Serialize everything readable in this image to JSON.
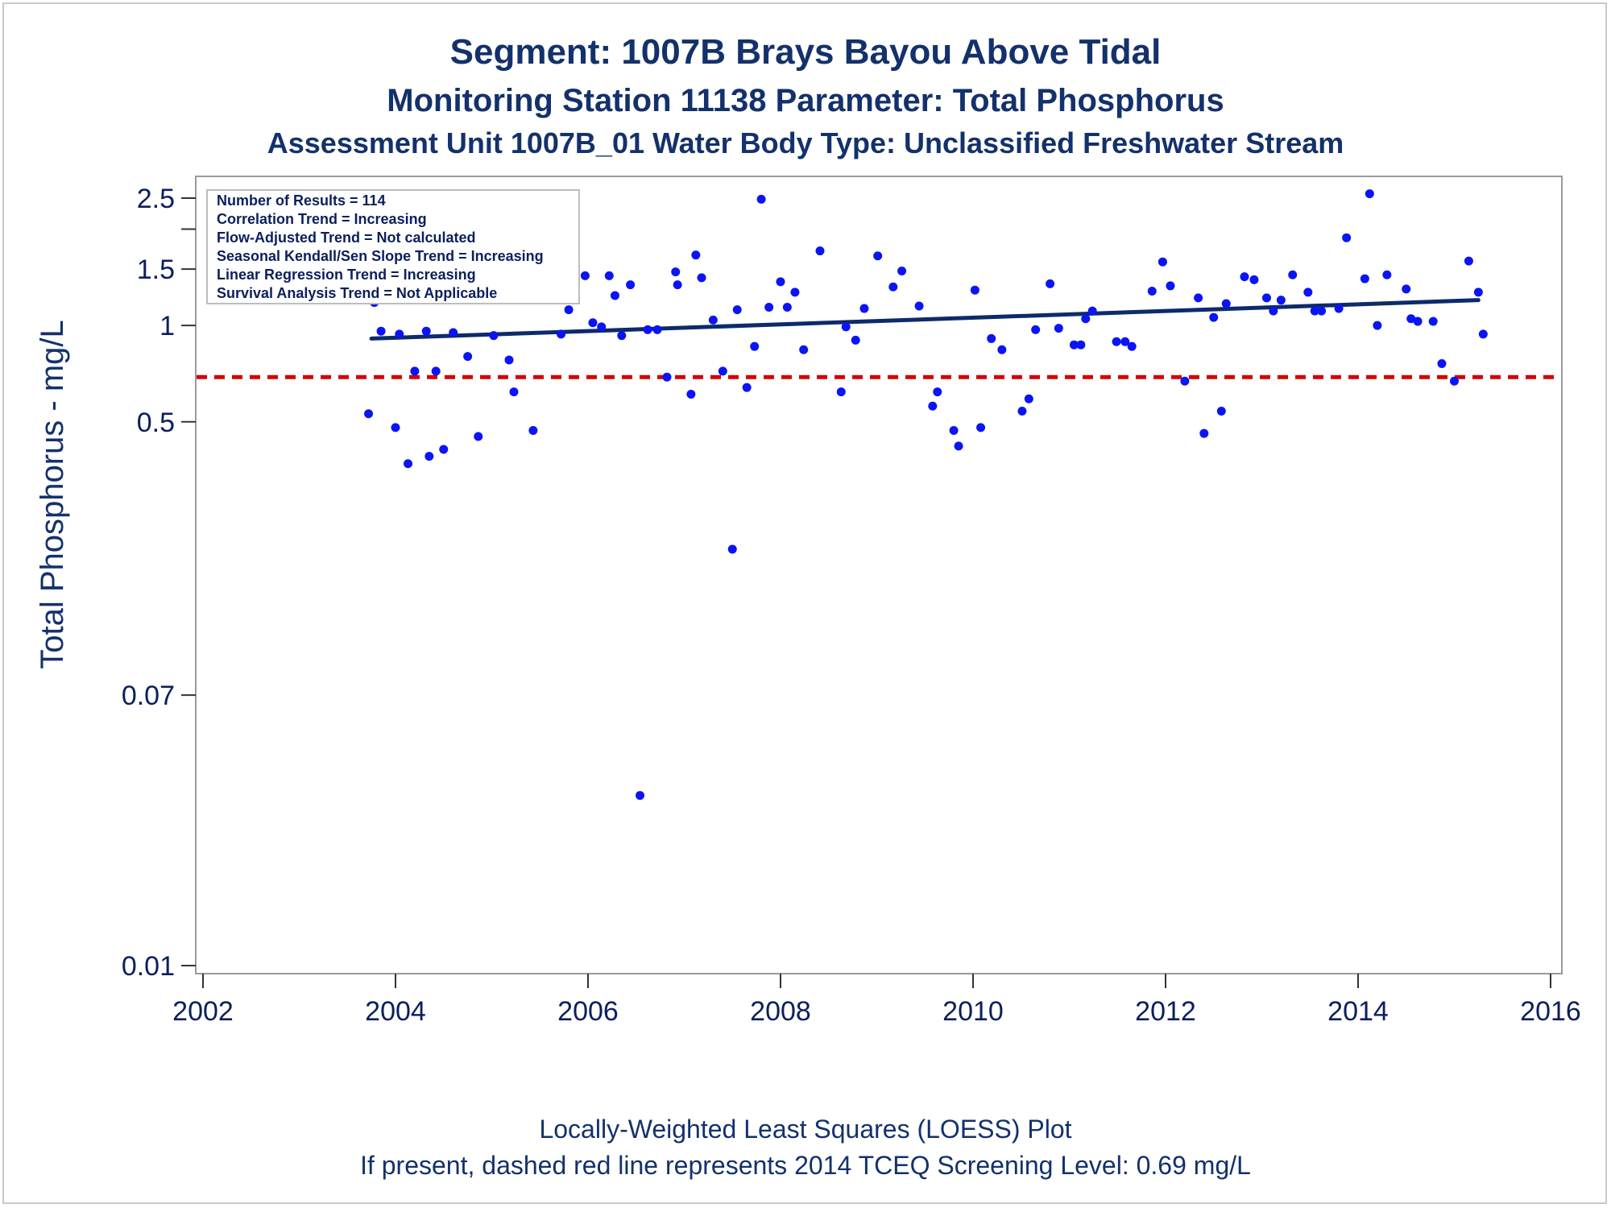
{
  "chart_data": {
    "type": "scatter",
    "title": "Segment: 1007B  Brays Bayou Above Tidal",
    "subtitle": "Monitoring Station 11138 Parameter: Total Phosphorus",
    "subtitle2": "Assessment Unit 1007B_01   Water Body Type: Unclassified Freshwater Stream",
    "xlabel": "",
    "ylabel": "Total Phosphorus - mg/L",
    "y_scale": "log",
    "xlim": [
      2002,
      2016
    ],
    "ylim": [
      0.009,
      2.9
    ],
    "x_ticks": [
      "2002",
      "2004",
      "2006",
      "2008",
      "2010",
      "2012",
      "2014",
      "2016"
    ],
    "y_ticks": [
      "0.01",
      "0.07",
      "0.5",
      "1",
      "1.5",
      "2.5"
    ],
    "y_minor_ticks": [
      2.0
    ],
    "inset_lines": [
      "Number of Results = 114",
      "Correlation Trend = Increasing",
      "Flow-Adjusted Trend = Not calculated",
      "Seasonal Kendall/Sen Slope Trend = Increasing",
      "Linear Regression Trend = Increasing",
      "Survival Analysis Trend = Not Applicable"
    ],
    "footnotes": [
      "Locally-Weighted Least Squares (LOESS) Plot",
      "If present, dashed red line represents 2014 TCEQ Screening Level: 0.69 mg/L"
    ],
    "screening_level": 0.69,
    "trend_line": [
      [
        2003.75,
        0.91
      ],
      [
        2015.25,
        1.2
      ]
    ],
    "colors": {
      "points": "#0a14f5",
      "trend": "#0d2a6b",
      "screening": "#d40000",
      "text": "#13316b"
    },
    "points": [
      [
        2003.72,
        0.53
      ],
      [
        2003.78,
        1.18
      ],
      [
        2003.85,
        0.96
      ],
      [
        2004.0,
        0.48
      ],
      [
        2004.04,
        0.94
      ],
      [
        2004.13,
        0.37
      ],
      [
        2004.2,
        0.72
      ],
      [
        2004.32,
        0.96
      ],
      [
        2004.35,
        0.39
      ],
      [
        2004.42,
        0.72
      ],
      [
        2004.5,
        0.41
      ],
      [
        2004.6,
        0.95
      ],
      [
        2004.75,
        0.8
      ],
      [
        2004.82,
        1.26
      ],
      [
        2004.86,
        0.45
      ],
      [
        2005.02,
        0.93
      ],
      [
        2005.12,
        1.65
      ],
      [
        2005.18,
        0.78
      ],
      [
        2005.23,
        0.62
      ],
      [
        2005.34,
        1.68
      ],
      [
        2005.43,
        0.47
      ],
      [
        2005.72,
        0.94
      ],
      [
        2005.8,
        1.12
      ],
      [
        2005.86,
        2.42
      ],
      [
        2005.97,
        1.43
      ],
      [
        2006.05,
        1.02
      ],
      [
        2006.14,
        0.99
      ],
      [
        2006.22,
        1.43
      ],
      [
        2006.28,
        1.24
      ],
      [
        2006.35,
        0.93
      ],
      [
        2006.44,
        1.34
      ],
      [
        2006.54,
        0.034
      ],
      [
        2006.62,
        0.97
      ],
      [
        2006.72,
        0.97
      ],
      [
        2006.82,
        0.69
      ],
      [
        2006.91,
        1.47
      ],
      [
        2006.93,
        1.34
      ],
      [
        2007.07,
        0.61
      ],
      [
        2007.12,
        1.66
      ],
      [
        2007.18,
        1.41
      ],
      [
        2007.3,
        1.04
      ],
      [
        2007.4,
        0.72
      ],
      [
        2007.5,
        0.2
      ],
      [
        2007.55,
        1.12
      ],
      [
        2007.65,
        0.64
      ],
      [
        2007.73,
        0.86
      ],
      [
        2007.8,
        2.48
      ],
      [
        2007.88,
        1.14
      ],
      [
        2008.0,
        1.37
      ],
      [
        2008.07,
        1.14
      ],
      [
        2008.15,
        1.27
      ],
      [
        2008.24,
        0.84
      ],
      [
        2008.41,
        1.71
      ],
      [
        2008.63,
        0.62
      ],
      [
        2008.68,
        0.99
      ],
      [
        2008.78,
        0.9
      ],
      [
        2008.87,
        1.13
      ],
      [
        2009.01,
        1.65
      ],
      [
        2009.17,
        1.32
      ],
      [
        2009.26,
        1.48
      ],
      [
        2009.44,
        1.15
      ],
      [
        2009.58,
        0.56
      ],
      [
        2009.63,
        0.62
      ],
      [
        2009.8,
        0.47
      ],
      [
        2009.85,
        0.42
      ],
      [
        2010.02,
        1.29
      ],
      [
        2010.08,
        0.48
      ],
      [
        2010.19,
        0.91
      ],
      [
        2010.3,
        0.84
      ],
      [
        2010.51,
        0.54
      ],
      [
        2010.58,
        0.59
      ],
      [
        2010.65,
        0.97
      ],
      [
        2010.8,
        1.35
      ],
      [
        2010.89,
        0.98
      ],
      [
        2011.05,
        0.87
      ],
      [
        2011.12,
        0.87
      ],
      [
        2011.17,
        1.05
      ],
      [
        2011.24,
        1.11
      ],
      [
        2011.49,
        0.89
      ],
      [
        2011.58,
        0.89
      ],
      [
        2011.65,
        0.86
      ],
      [
        2011.86,
        1.28
      ],
      [
        2011.97,
        1.58
      ],
      [
        2012.05,
        1.33
      ],
      [
        2012.2,
        0.67
      ],
      [
        2012.34,
        1.22
      ],
      [
        2012.4,
        0.46
      ],
      [
        2012.5,
        1.06
      ],
      [
        2012.58,
        0.54
      ],
      [
        2012.63,
        1.17
      ],
      [
        2012.82,
        1.42
      ],
      [
        2012.92,
        1.39
      ],
      [
        2013.05,
        1.22
      ],
      [
        2013.12,
        1.11
      ],
      [
        2013.2,
        1.2
      ],
      [
        2013.32,
        1.44
      ],
      [
        2013.48,
        1.27
      ],
      [
        2013.55,
        1.11
      ],
      [
        2013.62,
        1.11
      ],
      [
        2013.8,
        1.13
      ],
      [
        2013.88,
        1.88
      ],
      [
        2014.07,
        1.4
      ],
      [
        2014.12,
        2.58
      ],
      [
        2014.2,
        1.0
      ],
      [
        2014.3,
        1.44
      ],
      [
        2014.5,
        1.3
      ],
      [
        2014.55,
        1.05
      ],
      [
        2014.62,
        1.03
      ],
      [
        2014.78,
        1.03
      ],
      [
        2014.87,
        0.76
      ],
      [
        2015.0,
        0.67
      ],
      [
        2015.15,
        1.59
      ],
      [
        2015.25,
        1.27
      ],
      [
        2015.3,
        0.94
      ]
    ]
  }
}
